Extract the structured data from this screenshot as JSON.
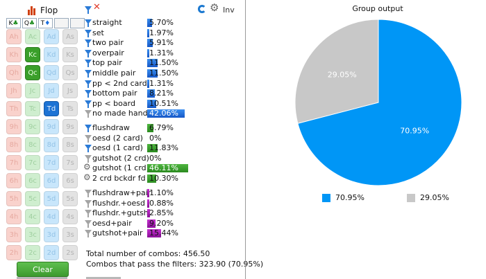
{
  "toolbar": {
    "flop_label": "Flop"
  },
  "board": {
    "slots": [
      {
        "rank": "K",
        "suit": "♣"
      },
      {
        "rank": "Q",
        "suit": "♣"
      },
      {
        "rank": "T",
        "suit": "♦"
      },
      {
        "rank": "",
        "suit": ""
      },
      {
        "rank": "",
        "suit": ""
      }
    ]
  },
  "card_grid": {
    "rows": [
      [
        "Ah",
        "Ac",
        "Ad",
        "As"
      ],
      [
        "Kh",
        "Kc",
        "Kd",
        "Ks"
      ],
      [
        "Qh",
        "Qc",
        "Qd",
        "Qs"
      ],
      [
        "Jh",
        "Jc",
        "Jd",
        "Js"
      ],
      [
        "Th",
        "Tc",
        "Td",
        "Ts"
      ],
      [
        "9h",
        "9c",
        "9d",
        "9s"
      ],
      [
        "8h",
        "8c",
        "8d",
        "8s"
      ],
      [
        "7h",
        "7c",
        "7d",
        "7s"
      ],
      [
        "6h",
        "6c",
        "6d",
        "6s"
      ],
      [
        "5h",
        "5c",
        "5d",
        "5s"
      ],
      [
        "4h",
        "4c",
        "4d",
        "4s"
      ],
      [
        "3h",
        "3c",
        "3d",
        "3s"
      ],
      [
        "2h",
        "2c",
        "2d",
        "2s"
      ]
    ],
    "selected": [
      "Kc",
      "Qc",
      "Td"
    ]
  },
  "clear_label": "Clear",
  "header": {
    "inv_label": "Inv"
  },
  "filters": {
    "made_hands": [
      {
        "label": "straight",
        "value": "5.70%",
        "pct": 5.7,
        "icon": "blue"
      },
      {
        "label": "set",
        "value": "1.97%",
        "pct": 1.97,
        "icon": "blue"
      },
      {
        "label": "two pair",
        "value": "5.91%",
        "pct": 5.91,
        "icon": "blue"
      },
      {
        "label": "overpair",
        "value": "1.31%",
        "pct": 1.31,
        "icon": "blue"
      },
      {
        "label": "top pair",
        "value": "11.50%",
        "pct": 11.5,
        "icon": "blue"
      },
      {
        "label": "middle pair",
        "value": "11.50%",
        "pct": 11.5,
        "icon": "blue"
      },
      {
        "label": "pp < 2nd card",
        "value": "1.31%",
        "pct": 1.31,
        "icon": "blue"
      },
      {
        "label": "bottom pair",
        "value": "8.21%",
        "pct": 8.21,
        "icon": "blue"
      },
      {
        "label": "pp < board",
        "value": "10.51%",
        "pct": 10.51,
        "icon": "blue"
      },
      {
        "label": "no made hand",
        "value": "42.06%",
        "pct": 42.06,
        "icon": "gray"
      }
    ],
    "draws": [
      {
        "label": "flushdraw",
        "value": "6.79%",
        "pct": 6.79,
        "icon": "blue"
      },
      {
        "label": "oesd (2 card)",
        "value": "0%",
        "pct": 0,
        "icon": "gray"
      },
      {
        "label": "oesd (1 card)",
        "value": "11.83%",
        "pct": 11.83,
        "icon": "blue"
      },
      {
        "label": "gutshot (2 crd)",
        "value": "0%",
        "pct": 0,
        "icon": "gray"
      },
      {
        "label": "gutshot (1 crd)",
        "value": "46.11%",
        "pct": 46.11,
        "icon": "gear"
      },
      {
        "label": "2 crd bckdr fd",
        "value": "10.30%",
        "pct": 10.3,
        "icon": "gear"
      }
    ],
    "combos": [
      {
        "label": "flushdraw+pair",
        "value": "1.10%",
        "pct": 1.1,
        "icon": "gray"
      },
      {
        "label": "flushdr.+oesd",
        "value": "0.88%",
        "pct": 0.88,
        "icon": "gray"
      },
      {
        "label": "flushdr.+gutsh.",
        "value": "2.85%",
        "pct": 2.85,
        "icon": "gray"
      },
      {
        "label": "oesd+pair",
        "value": "9.20%",
        "pct": 9.2,
        "icon": "gray"
      },
      {
        "label": "gutshot+pair",
        "value": "15.44%",
        "pct": 15.44,
        "icon": "gray"
      }
    ]
  },
  "totals": {
    "line1": "Total number of combos: 456.50",
    "line2": "Combos that pass the filters: 323.90 (70.95%)"
  },
  "colors": {
    "pie_primary": "#0096f6",
    "pie_secondary": "#c8c8c8",
    "bar_blue": "#1f6ee0",
    "bar_green": "#2e9a22",
    "bar_purple": "#b01fc0"
  },
  "chart_data": {
    "type": "pie",
    "title": "Group output",
    "slices": [
      {
        "value": 70.95,
        "label": "70.95%",
        "color": "#0096f6"
      },
      {
        "value": 29.05,
        "label": "29.05%",
        "color": "#c8c8c8"
      }
    ],
    "legend": [
      "70.95%",
      "29.05%"
    ],
    "legend_position": "bottom"
  }
}
